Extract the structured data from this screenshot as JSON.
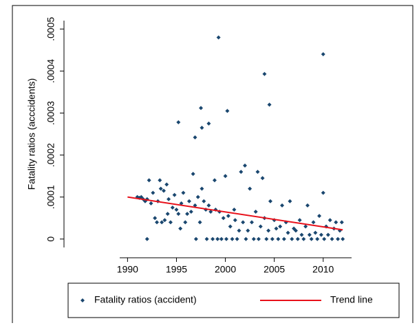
{
  "chart_data": {
    "type": "scatter",
    "y_label": "Fatality ratios (acccidents)",
    "xlim": [
      1989.2,
      2012.9
    ],
    "xticks": [
      1990,
      1995,
      2000,
      2005,
      2010
    ],
    "ylim": [
      -2e-05,
      0.00052
    ],
    "yticks": [
      0,
      {
        "value": 0.0001,
        "label": ".0001"
      },
      {
        "value": 0.0002,
        "label": ".0002"
      },
      {
        "value": 0.0003,
        "label": ".0003"
      },
      {
        "value": 0.0004,
        "label": ".0004"
      },
      {
        "value": 0.0005,
        "label": ".0005"
      }
    ],
    "grid": false,
    "legend": "bottom",
    "series": [
      {
        "name": "Fatality ratios (accident)",
        "type": "scatter",
        "color": "#1a476f",
        "x": [
          1991.0,
          1991.2,
          1991.4,
          1991.6,
          1991.8,
          1992.0,
          1992.0,
          1992.2,
          1992.4,
          1992.6,
          1992.8,
          1993.0,
          1993.1,
          1993.3,
          1993.4,
          1993.5,
          1993.7,
          1993.8,
          1994.0,
          1994.1,
          1994.2,
          1994.4,
          1994.6,
          1994.8,
          1995.0,
          1995.2,
          1995.4,
          1995.5,
          1995.7,
          1995.9,
          1996.1,
          1996.3,
          1996.5,
          1996.7,
          1996.9,
          1997.0,
          1997.2,
          1997.4,
          1997.6,
          1997.8,
          1998.0,
          1998.1,
          1998.3,
          1998.5,
          1998.7,
          1998.9,
          1999.0,
          1999.2,
          1999.4,
          1999.6,
          1999.8,
          2000.0,
          2000.1,
          2000.3,
          2000.5,
          2000.7,
          2000.9,
          2001.0,
          2001.2,
          2001.4,
          2001.6,
          2001.8,
          2002.0,
          2002.1,
          2002.3,
          2002.5,
          2002.7,
          2002.9,
          2003.1,
          2003.3,
          2003.4,
          2003.6,
          2003.8,
          2004.0,
          2004.2,
          2004.4,
          2004.6,
          2004.8,
          2005.0,
          2005.2,
          2005.4,
          2005.6,
          2005.8,
          2006.0,
          2006.2,
          2006.4,
          2006.6,
          2006.8,
          2007.0,
          2007.2,
          2007.4,
          2007.6,
          2007.8,
          2008.0,
          2008.2,
          2008.4,
          2008.6,
          2008.8,
          2009.0,
          2009.2,
          2009.4,
          2009.6,
          2009.8,
          2010.0,
          2010.1,
          2010.3,
          2010.5,
          2010.7,
          2010.9,
          2011.1,
          2011.3,
          2011.5,
          2011.7,
          2011.9,
          2012.0,
          1999.3,
          2010.0,
          2004.0,
          2004.5,
          2000.2,
          1997.5,
          1995.2,
          1997.6,
          1998.3,
          1996.9
        ],
        "values": [
          0.0001,
          9.8e-05,
          0.0001,
          9.5e-05,
          9e-05,
          9.5e-05,
          0,
          0.00014,
          8.5e-05,
          0.00011,
          5e-05,
          4e-05,
          9e-05,
          0.00014,
          0.00012,
          4e-05,
          0.000115,
          4.5e-05,
          0.00013,
          6e-05,
          9.5e-05,
          4e-05,
          7.5e-05,
          0.000105,
          7e-05,
          6e-05,
          2.5e-05,
          8.5e-05,
          0.00011,
          4e-05,
          6e-05,
          9e-05,
          6.5e-05,
          0.000155,
          8e-05,
          0,
          0.0001,
          4e-05,
          0.00012,
          9e-05,
          7e-05,
          0,
          8e-05,
          6.5e-05,
          0,
          0.00014,
          7e-05,
          0,
          6.5e-05,
          0,
          5e-05,
          0.00015,
          0,
          5.5e-05,
          3e-05,
          0,
          7e-05,
          4.5e-05,
          0,
          2e-05,
          0.00016,
          4e-05,
          0.000175,
          0,
          2e-05,
          0.00012,
          4e-05,
          0,
          6.5e-05,
          0.00016,
          0,
          3e-05,
          0.000145,
          5e-05,
          0,
          2e-05,
          9e-05,
          0,
          4.5e-05,
          2.5e-05,
          0,
          3e-05,
          8e-05,
          0,
          4e-05,
          1.5e-05,
          9e-05,
          0,
          2.5e-05,
          2e-05,
          0,
          4.5e-05,
          1e-05,
          0,
          3e-05,
          8e-05,
          1e-05,
          0,
          4e-05,
          1.5e-05,
          0,
          5.5e-05,
          1e-05,
          0.00011,
          0,
          3e-05,
          1e-05,
          4.5e-05,
          0,
          2.5e-05,
          4e-05,
          0,
          2e-05,
          4e-05,
          0,
          0.00048,
          0.00044,
          0.000393,
          0.00032,
          0.000305,
          0.000312,
          0.000278,
          0.000265,
          0.000275,
          0.000242
        ]
      },
      {
        "name": "Trend line",
        "type": "line",
        "color": "#e8101a",
        "x": [
          1990,
          2012
        ],
        "values": [
          0.0001,
          2.2e-05
        ]
      }
    ]
  }
}
